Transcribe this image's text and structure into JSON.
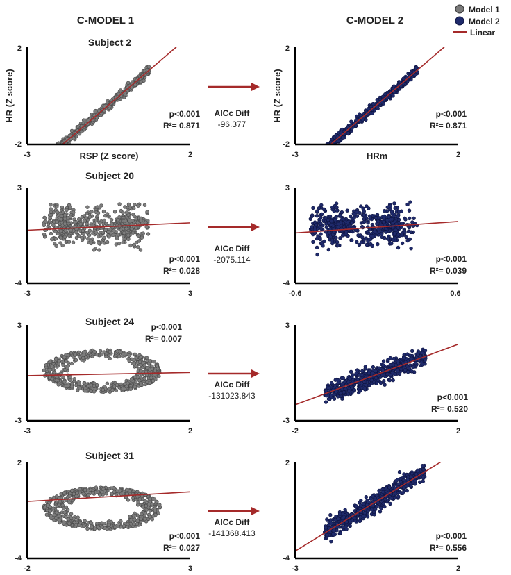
{
  "figure": {
    "col_titles": [
      "C-MODEL 1",
      "C-MODEL 2"
    ],
    "legend": [
      {
        "label": "Model 1",
        "color": "#7a7a7a",
        "marker": "circle"
      },
      {
        "label": "Model 2",
        "color": "#1f2a6b",
        "marker": "circle"
      },
      {
        "label": "Linear",
        "color": "#a52a2a",
        "marker": "line"
      }
    ],
    "colors": {
      "model1": "#7d7d7d",
      "model1_edge": "#4a4a4a",
      "model2": "#1f2a6b",
      "model2_edge": "#0e1440",
      "linear": "#a52a2a",
      "arrow": "#a52a2a"
    }
  },
  "chart_data": [
    {
      "type": "scatter",
      "subject": "Subject 2",
      "left": {
        "model": "Model 1",
        "xlabel": "RSP (Z score)",
        "ylabel": "HR (Z score)",
        "xlim": [
          -3,
          2
        ],
        "ylim": [
          -2,
          2
        ],
        "x_ticks": [
          "-3",
          "2"
        ],
        "y_ticks": [
          "2",
          "-2"
        ],
        "p": "p<0.001",
        "r2": "R²= 0.871",
        "fit": {
          "slope": 1.15,
          "intercept": 0.2
        },
        "pattern": "diagonal"
      },
      "comparison": {
        "label": "AICc Diff",
        "value": "-96.377"
      },
      "right": {
        "model": "Model 2",
        "xlabel": "HRm",
        "ylabel": "HR (Z score)",
        "xlim": [
          -3,
          2
        ],
        "ylim": [
          -2,
          2
        ],
        "x_ticks": [
          "-3",
          "2"
        ],
        "y_ticks": [
          "2",
          "-2"
        ],
        "p": "p<0.001",
        "r2": "R²= 0.871",
        "fit": {
          "slope": 1.15,
          "intercept": 0.2
        },
        "pattern": "diagonal"
      }
    },
    {
      "type": "scatter",
      "subject": "Subject 20",
      "left": {
        "model": "Model 1",
        "xlim": [
          -3,
          3
        ],
        "ylim": [
          -4,
          3
        ],
        "x_ticks": [
          "-3",
          "3"
        ],
        "y_ticks": [
          "3",
          "-4"
        ],
        "p": "p<0.001",
        "r2": "R²= 0.028",
        "fit": {
          "slope": 0.09,
          "intercept": 0.15
        },
        "pattern": "band"
      },
      "comparison": {
        "label": "AICc Diff",
        "value": "-2075.114"
      },
      "right": {
        "model": "Model 2",
        "xlim": [
          -0.6,
          0.6
        ],
        "ylim": [
          -4,
          3
        ],
        "x_ticks": [
          "-0.6",
          "0.6"
        ],
        "y_ticks": [
          "3",
          "-4"
        ],
        "p": "p<0.001",
        "r2": "R²= 0.039",
        "fit": {
          "slope": 0.7,
          "intercept": 0.1
        },
        "pattern": "band"
      }
    },
    {
      "type": "scatter",
      "subject": "Subject 24",
      "left": {
        "model": "Model 1",
        "xlim": [
          -3,
          2
        ],
        "ylim": [
          -3,
          3
        ],
        "x_ticks": [
          "-3",
          "2"
        ],
        "y_ticks": [
          "3",
          "-3"
        ],
        "p": "p<0.001",
        "r2": "R²= 0.007",
        "fit": {
          "slope": 0.04,
          "intercept": -0.05
        },
        "pattern": "ellipse"
      },
      "comparison": {
        "label": "AICc Diff",
        "value": "-131023.843"
      },
      "right": {
        "model": "Model 2",
        "xlim": [
          -2,
          2
        ],
        "ylim": [
          -3,
          3
        ],
        "x_ticks": [
          "-2",
          "2"
        ],
        "y_ticks": [
          "3",
          "-3"
        ],
        "p": "p<0.001",
        "r2": "R²= 0.520",
        "fit": {
          "slope": 0.95,
          "intercept": -0.1
        },
        "pattern": "slanted"
      }
    },
    {
      "type": "scatter",
      "subject": "Subject 31",
      "left": {
        "model": "Model 1",
        "xlim": [
          -2,
          3
        ],
        "ylim": [
          -4,
          2
        ],
        "x_ticks": [
          "-2",
          "3"
        ],
        "y_ticks": [
          "2",
          "-4"
        ],
        "p": "p<0.001",
        "r2": "R²= 0.027",
        "fit": {
          "slope": 0.12,
          "intercept": -0.2
        },
        "pattern": "ellipse"
      },
      "comparison": {
        "label": "AICc Diff",
        "value": "-141368.413"
      },
      "right": {
        "model": "Model 2",
        "xlim": [
          -3,
          2
        ],
        "ylim": [
          -4,
          2
        ],
        "x_ticks": [
          "-3",
          "2"
        ],
        "y_ticks": [
          "2",
          "-4"
        ],
        "p": "p<0.001",
        "r2": "R²= 0.556",
        "fit": {
          "slope": 1.25,
          "intercept": 0.2
        },
        "pattern": "slanted"
      }
    }
  ]
}
